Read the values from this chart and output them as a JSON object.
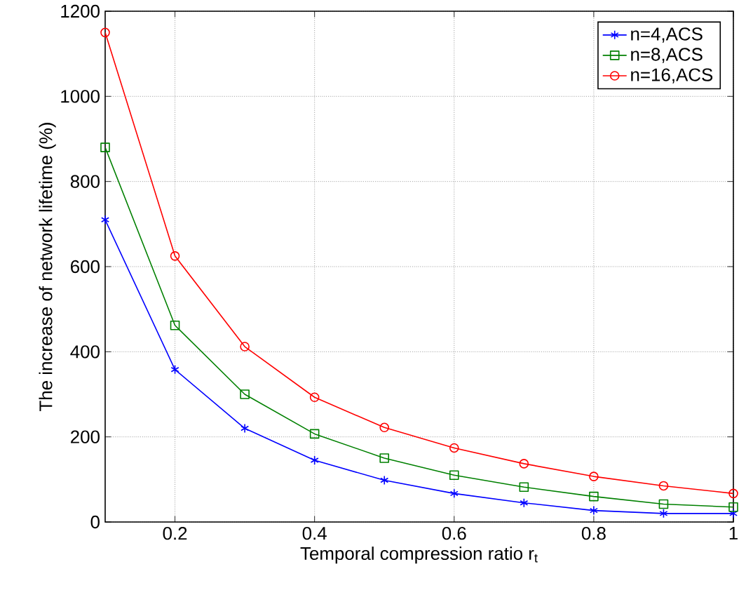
{
  "chart_data": {
    "type": "line",
    "xlabel": "Temporal compression ratio r$_{t}$",
    "ylabel": "The increase of network lifetime (%)",
    "x": [
      0.1,
      0.2,
      0.3,
      0.4,
      0.5,
      0.6,
      0.7,
      0.8,
      0.9,
      1.0
    ],
    "series": [
      {
        "name": "n=4,ACS",
        "color": "#0000ff",
        "marker": "cross",
        "values": [
          710,
          358,
          220,
          145,
          98,
          67,
          45,
          27,
          20,
          20
        ]
      },
      {
        "name": "n=8,ACS",
        "color": "#008000",
        "marker": "square",
        "values": [
          880,
          462,
          300,
          207,
          150,
          110,
          82,
          60,
          42,
          35
        ]
      },
      {
        "name": "n=16,ACS",
        "color": "#ff0000",
        "marker": "circle",
        "values": [
          1150,
          625,
          412,
          293,
          222,
          174,
          137,
          107,
          85,
          67
        ]
      }
    ],
    "xlim": [
      0.1,
      1
    ],
    "ylim": [
      0,
      1200
    ],
    "xticks": [
      0.2,
      0.4,
      0.6,
      0.8,
      1
    ],
    "yticks": [
      0,
      200,
      400,
      600,
      800,
      1000,
      1200
    ],
    "grid": true,
    "legend": "top right",
    "line_style": "solid"
  }
}
